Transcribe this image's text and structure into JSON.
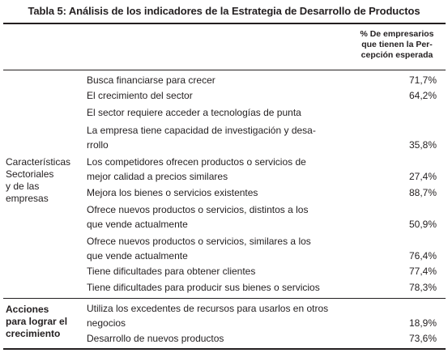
{
  "title": "Tabla 5: Análisis de los indicadores de la Estrategia de Desarrollo de Productos",
  "column_header": [
    "% De empresarios",
    "que tienen la Per-",
    "cepción esperada"
  ],
  "groups": [
    {
      "label": [
        "Características",
        "Sectoriales",
        "y de las",
        "empresas"
      ],
      "rows": [
        {
          "lines": [
            "Busca financiarse para crecer"
          ],
          "value": "71,7%"
        },
        {
          "lines": [
            "El crecimiento del sector"
          ],
          "value": "64,2%"
        },
        {
          "lines": [
            "El sector requiere acceder a tecnologías de punta"
          ],
          "value": ""
        },
        {
          "lines": [
            "La empresa tiene capacidad de investigación y desa-",
            "rrollo"
          ],
          "value": "35,8%"
        },
        {
          "lines": [
            "Los competidores ofrecen productos o servicios de",
            "mejor calidad a precios similares"
          ],
          "value": "27,4%"
        },
        {
          "lines": [
            "Mejora los bienes o servicios existentes"
          ],
          "value": "88,7%"
        },
        {
          "lines": [
            "Ofrece nuevos productos o servicios, distintos a los",
            "que vende actualmente"
          ],
          "value": "50,9%"
        },
        {
          "lines": [
            "Ofrece nuevos productos o servicios, similares a los",
            "que vende actualmente"
          ],
          "value": "76,4%"
        },
        {
          "lines": [
            "Tiene dificultades para obtener clientes"
          ],
          "value": "77,4%"
        },
        {
          "lines": [
            "Tiene dificultades para producir sus bienes o servicios"
          ],
          "value": "78,3%"
        }
      ]
    },
    {
      "label": [
        "Acciones",
        "para lograr el",
        "crecimiento"
      ],
      "rows": [
        {
          "lines": [
            "Utiliza los excedentes de recursos para usarlos en otros",
            "negocios"
          ],
          "value": "18,9%"
        },
        {
          "lines": [
            "Desarrollo de nuevos productos"
          ],
          "value": "73,6%"
        }
      ]
    }
  ]
}
